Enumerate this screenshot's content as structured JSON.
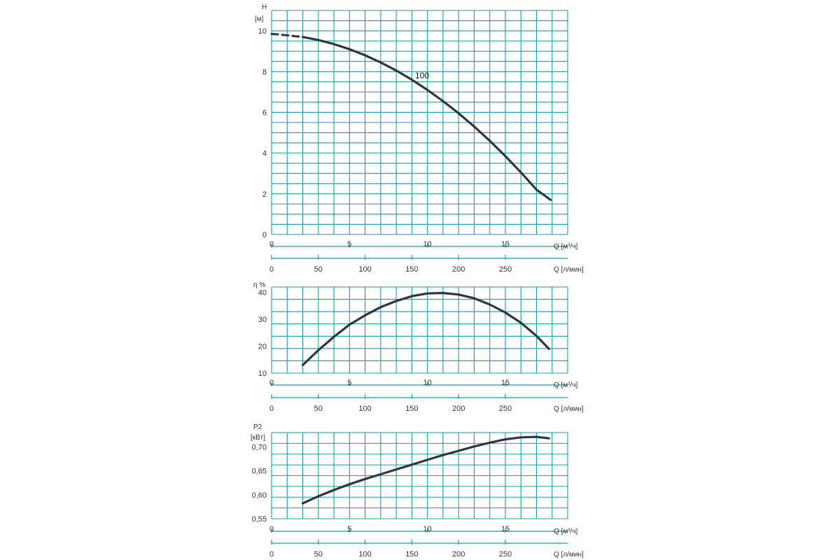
{
  "colors": {
    "grid": "#1a9aaa",
    "curve": "#2f3540",
    "text": "#333333",
    "background": "#ffffff"
  },
  "chart_data": [
    {
      "type": "line",
      "title": "",
      "ylabel": "H",
      "yunit": "[м]",
      "xlabel": "Q [м³/ч]",
      "xlim": [
        0,
        19
      ],
      "ylim": [
        0,
        11
      ],
      "yticks": [
        "0",
        "2",
        "4",
        "6",
        "8",
        "10"
      ],
      "xticks": [
        "0",
        "5",
        "10",
        "15"
      ],
      "secondary_xlabel": "Q [л/мин]",
      "secondary_xticks": [
        "0",
        "50",
        "100",
        "150",
        "200",
        "250"
      ],
      "grid": true,
      "annotation": "100",
      "dashed_segment": {
        "x": [
          0,
          0.5,
          1,
          1.5,
          2
        ],
        "y": [
          9.85,
          9.82,
          9.78,
          9.74,
          9.7
        ]
      },
      "series": [
        {
          "x": [
            2,
            3,
            4,
            5,
            6,
            7,
            8,
            9,
            10,
            11,
            12,
            13,
            14,
            15,
            16,
            17,
            17.9
          ],
          "y": [
            9.7,
            9.55,
            9.35,
            9.1,
            8.8,
            8.45,
            8.05,
            7.6,
            7.1,
            6.55,
            5.95,
            5.3,
            4.6,
            3.85,
            3.05,
            2.2,
            1.7
          ]
        }
      ]
    },
    {
      "type": "line",
      "title": "",
      "ylabel": "η %",
      "xlabel": "Q [м³/ч]",
      "xlim": [
        0,
        19
      ],
      "ylim": [
        10,
        42
      ],
      "yticks": [
        "10",
        "20",
        "30",
        "40"
      ],
      "xticks": [
        "0",
        "5",
        "10",
        "15"
      ],
      "secondary_xlabel": "Q [л/мин]",
      "secondary_xticks": [
        "0",
        "50",
        "100",
        "150",
        "200",
        "250"
      ],
      "grid": true,
      "series": [
        {
          "x": [
            2,
            3,
            4,
            5,
            6,
            7,
            8,
            9,
            10,
            11,
            12,
            13,
            14,
            15,
            16,
            17,
            17.8
          ],
          "y": [
            13,
            18.5,
            23.5,
            28,
            31.5,
            34.5,
            36.8,
            38.6,
            39.6,
            39.8,
            39.2,
            37.8,
            35.5,
            32.5,
            28.7,
            23.8,
            19
          ]
        }
      ]
    },
    {
      "type": "line",
      "title": "",
      "ylabel": "P2",
      "yunit": "[кВт]",
      "xlabel": "Q [м³/ч]",
      "xlim": [
        0,
        19
      ],
      "ylim": [
        0.55,
        0.73
      ],
      "yticks": [
        "0,55",
        "0,60",
        "0,65",
        "0,70"
      ],
      "xticks": [
        "0",
        "5",
        "10",
        "15"
      ],
      "secondary_xlabel": "Q [л/мин]",
      "secondary_xticks": [
        "0",
        "50",
        "100",
        "150",
        "200",
        "250"
      ],
      "grid": true,
      "series": [
        {
          "x": [
            2,
            3,
            4,
            5,
            6,
            7,
            8,
            9,
            10,
            11,
            12,
            13,
            14,
            15,
            16,
            17,
            17.8
          ],
          "y": [
            0.582,
            0.597,
            0.61,
            0.622,
            0.633,
            0.643,
            0.653,
            0.663,
            0.673,
            0.683,
            0.692,
            0.701,
            0.709,
            0.716,
            0.72,
            0.721,
            0.718
          ]
        }
      ]
    }
  ]
}
